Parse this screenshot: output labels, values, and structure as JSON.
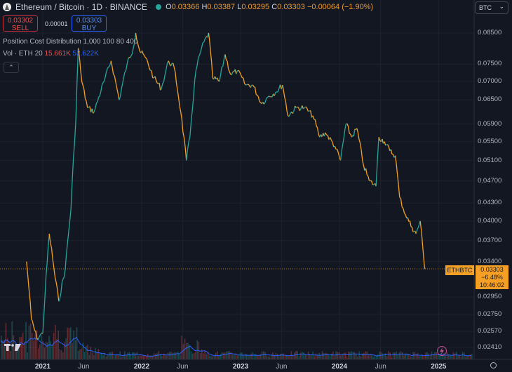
{
  "header": {
    "title": "Ethereum / Bitcoin · 1D · BINANCE",
    "o_label": "O",
    "o_value": "0.03366",
    "h_label": "H",
    "h_value": "0.03387",
    "l_label": "L",
    "l_value": "0.03295",
    "c_label": "C",
    "c_value": "0.03303",
    "change": "−0.00064 (−1.90%)"
  },
  "trade": {
    "sell_price": "0.03302",
    "sell_label": "SELL",
    "spread": "0.00001",
    "buy_price": "0.03303",
    "buy_label": "BUY"
  },
  "indicators": {
    "position_cost": "Position Cost Distribution",
    "position_params": "1,000 100 80 400",
    "volume_label": "Vol · ETH",
    "volume_length": "20",
    "volume_sell": "15.661K",
    "volume_buy": "52.622K",
    "collapse_glyph": "⌃"
  },
  "currency_select": {
    "value": "BTC",
    "arrow": "⌄"
  },
  "price_axis": [
    "0.08500",
    "0.07500",
    "0.07000",
    "0.06500",
    "0.05900",
    "0.05500",
    "0.05100",
    "0.04700",
    "0.04300",
    "0.04000",
    "0.03700",
    "0.03400",
    "0.02950",
    "0.02750",
    "0.02570",
    "0.02410"
  ],
  "time_axis": [
    "2021",
    "Jun",
    "2022",
    "Jun",
    "2023",
    "Jun",
    "2024",
    "Jun",
    "2025"
  ],
  "last_price": {
    "symbol": "ETHBTC",
    "price": "0.03303",
    "change_pct": "−6.48%",
    "countdown": "10:46:02",
    "color": "#f5a025"
  },
  "chart_data": {
    "type": "line",
    "series": [
      {
        "values": [
          [
            "2020-11-02",
            0.034
          ],
          [
            "2020-11-20",
            0.027
          ],
          [
            "2020-12-10",
            0.025
          ],
          [
            "2021-01-01",
            0.0255
          ],
          [
            "2021-01-25",
            0.038
          ],
          [
            "2021-02-15",
            0.032
          ],
          [
            "2021-03-01",
            0.029
          ],
          [
            "2021-03-25",
            0.033
          ],
          [
            "2021-04-15",
            0.042
          ],
          [
            "2021-05-03",
            0.06
          ],
          [
            "2021-05-12",
            0.08
          ],
          [
            "2021-05-25",
            0.07
          ],
          [
            "2021-06-15",
            0.063
          ],
          [
            "2021-07-10",
            0.062
          ],
          [
            "2021-08-15",
            0.07
          ],
          [
            "2021-09-10",
            0.076
          ],
          [
            "2021-10-10",
            0.065
          ],
          [
            "2021-11-08",
            0.075
          ],
          [
            "2021-12-01",
            0.08
          ],
          [
            "2021-12-10",
            0.085
          ],
          [
            "2021-12-25",
            0.079
          ],
          [
            "2022-01-15",
            0.077
          ],
          [
            "2022-02-15",
            0.071
          ],
          [
            "2022-03-15",
            0.068
          ],
          [
            "2022-04-10",
            0.076
          ],
          [
            "2022-05-01",
            0.074
          ],
          [
            "2022-05-25",
            0.062
          ],
          [
            "2022-06-15",
            0.051
          ],
          [
            "2022-06-28",
            0.056
          ],
          [
            "2022-07-20",
            0.073
          ],
          [
            "2022-08-10",
            0.08
          ],
          [
            "2022-09-05",
            0.085
          ],
          [
            "2022-09-20",
            0.071
          ],
          [
            "2022-10-15",
            0.07
          ],
          [
            "2022-11-05",
            0.078
          ],
          [
            "2022-11-25",
            0.072
          ],
          [
            "2022-12-20",
            0.073
          ],
          [
            "2023-01-20",
            0.069
          ],
          [
            "2023-02-15",
            0.069
          ],
          [
            "2023-03-20",
            0.064
          ],
          [
            "2023-04-15",
            0.066
          ],
          [
            "2023-05-10",
            0.067
          ],
          [
            "2023-06-05",
            0.069
          ],
          [
            "2023-06-25",
            0.061
          ],
          [
            "2023-07-25",
            0.063
          ],
          [
            "2023-08-25",
            0.063
          ],
          [
            "2023-09-25",
            0.061
          ],
          [
            "2023-10-20",
            0.056
          ],
          [
            "2023-11-10",
            0.057
          ],
          [
            "2023-12-15",
            0.054
          ],
          [
            "2024-01-05",
            0.051
          ],
          [
            "2024-01-25",
            0.059
          ],
          [
            "2024-02-15",
            0.056
          ],
          [
            "2024-03-05",
            0.058
          ],
          [
            "2024-03-30",
            0.05
          ],
          [
            "2024-04-20",
            0.047
          ],
          [
            "2024-05-15",
            0.046
          ],
          [
            "2024-05-25",
            0.056
          ],
          [
            "2024-06-15",
            0.055
          ],
          [
            "2024-07-05",
            0.053
          ],
          [
            "2024-07-25",
            0.052
          ],
          [
            "2024-08-10",
            0.044
          ],
          [
            "2024-09-01",
            0.041
          ],
          [
            "2024-09-25",
            0.039
          ],
          [
            "2024-10-10",
            0.038
          ],
          [
            "2024-10-25",
            0.04
          ],
          [
            "2024-11-08",
            0.034
          ],
          [
            "2024-11-12",
            0.033
          ]
        ]
      }
    ],
    "last_value": 0.03303,
    "colors": {
      "up": "#26a69a",
      "down": "#f5a025",
      "volume_line": "#2962ff",
      "background": "#131722"
    },
    "y_scale": "log",
    "grid": true
  }
}
